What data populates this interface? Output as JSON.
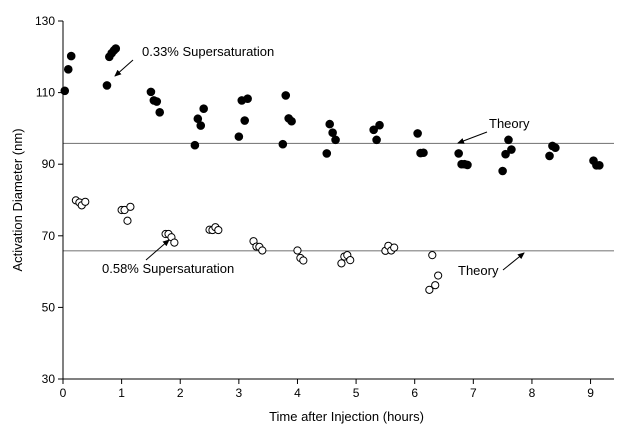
{
  "chart_data": {
    "type": "scatter",
    "xlabel": "Time after Injection (hours)",
    "ylabel": "Activation Diameter (nm)",
    "xlim": [
      0,
      9.4
    ],
    "ylim": [
      30,
      130
    ],
    "xticks": [
      0,
      1,
      2,
      3,
      4,
      5,
      6,
      7,
      8,
      9
    ],
    "yticks": [
      30,
      50,
      70,
      90,
      110,
      130
    ],
    "grid": false,
    "series": [
      {
        "name": "0.33% Supersaturation",
        "marker": "filled-circle",
        "color": "#000000",
        "x": [
          0.03,
          0.09,
          0.14,
          0.75,
          0.79,
          0.83,
          0.87,
          0.9,
          1.5,
          1.55,
          1.6,
          1.65,
          2.25,
          2.3,
          2.35,
          2.4,
          3.0,
          3.05,
          3.1,
          3.15,
          3.75,
          3.8,
          3.85,
          3.9,
          4.5,
          4.55,
          4.6,
          4.65,
          5.3,
          5.35,
          5.4,
          6.05,
          6.1,
          6.15,
          6.75,
          6.8,
          6.85,
          6.9,
          7.5,
          7.55,
          7.6,
          7.65,
          8.3,
          8.35,
          8.4,
          9.05,
          9.1,
          9.15
        ],
        "y": [
          110.5,
          116.5,
          120.2,
          112,
          120,
          121,
          121.8,
          122.3,
          110.2,
          107.8,
          107.5,
          104.5,
          95.3,
          102.7,
          100.8,
          105.5,
          97.7,
          107.8,
          102.2,
          108.3,
          95.6,
          109.2,
          102.8,
          102,
          93,
          101.2,
          98.8,
          96.8,
          99.6,
          96.8,
          100.9,
          98.6,
          93.1,
          93.2,
          93,
          90,
          90,
          89.8,
          88.1,
          92.8,
          96.8,
          94.1,
          92.3,
          95.1,
          94.6,
          91,
          89.7,
          89.7
        ]
      },
      {
        "name": "0.58% Supersaturation",
        "marker": "open-circle",
        "color": "#000000",
        "x": [
          0.22,
          0.28,
          0.32,
          0.38,
          1.0,
          1.05,
          1.1,
          1.15,
          1.75,
          1.8,
          1.85,
          1.9,
          2.5,
          2.55,
          2.6,
          2.65,
          3.25,
          3.3,
          3.35,
          3.4,
          4.0,
          4.05,
          4.1,
          4.75,
          4.8,
          4.85,
          4.9,
          5.5,
          5.55,
          5.6,
          5.65,
          6.25,
          6.3,
          6.35,
          6.4
        ],
        "y": [
          79.9,
          79.3,
          78.5,
          79.5,
          77.2,
          77.2,
          74.2,
          78.1,
          70.5,
          70.5,
          69.6,
          68.1,
          71.7,
          71.6,
          72.4,
          71.6,
          68.5,
          67,
          66.9,
          65.9,
          65.9,
          63.8,
          63.1,
          62.3,
          64.2,
          64.6,
          63.2,
          65.8,
          67.2,
          65.9,
          66.7,
          54.9,
          64.6,
          56.2,
          58.9
        ]
      }
    ],
    "reference_lines": [
      {
        "label": "Theory",
        "y": 95.8
      },
      {
        "label": "Theory",
        "y": 65.8
      }
    ],
    "annotations": [
      {
        "text": "0.33% Supersaturation",
        "points_to_x": 0.9,
        "points_to_y": 117
      },
      {
        "text": "0.58% Supersaturation",
        "points_to_x": 1.8,
        "points_to_y": 70.5
      },
      {
        "text": "Theory",
        "points_to_x": 6.7,
        "points_to_y": 95.8
      },
      {
        "text": "Theory",
        "points_to_x": 7.8,
        "points_to_y": 65.8
      }
    ]
  }
}
